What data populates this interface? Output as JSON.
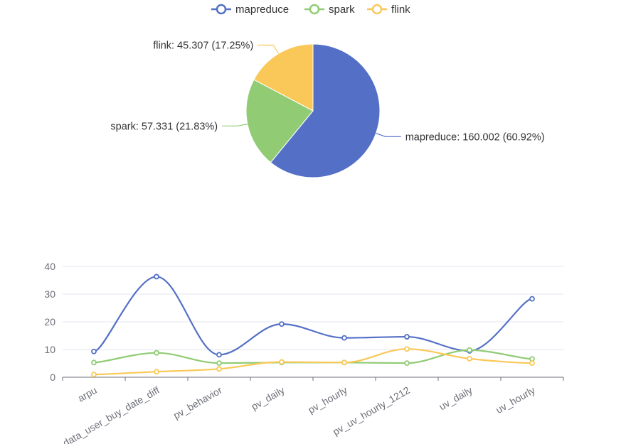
{
  "legend": [
    {
      "name": "mapreduce",
      "color": "#5470c6"
    },
    {
      "name": "spark",
      "color": "#91cc75"
    },
    {
      "name": "flink",
      "color": "#fac858"
    }
  ],
  "chart_data": [
    {
      "type": "pie",
      "slices": [
        {
          "name": "mapreduce",
          "value": 160.002,
          "percent": "60.92%",
          "label": "mapreduce: 160.002 (60.92%)",
          "color": "#5470c6"
        },
        {
          "name": "spark",
          "value": 57.331,
          "percent": "21.83%",
          "label": "spark: 57.331 (21.83%)",
          "color": "#91cc75"
        },
        {
          "name": "flink",
          "value": 45.307,
          "percent": "17.25%",
          "label": "flink: 45.307 (17.25%)",
          "color": "#fac858"
        }
      ]
    },
    {
      "type": "line",
      "smooth": true,
      "categories": [
        "arpu",
        "data_user_buy_date_diff",
        "pv_behavior",
        "pv_daily",
        "pv_hourly",
        "pv_uv_hourly_1212",
        "uv_daily",
        "uv_hourly"
      ],
      "series": [
        {
          "name": "mapreduce",
          "color": "#5470c6",
          "values": [
            9.3,
            36.3,
            8.1,
            19.2,
            14.2,
            14.6,
            9.5,
            28.3
          ]
        },
        {
          "name": "spark",
          "color": "#91cc75",
          "values": [
            5.3,
            8.8,
            5.1,
            5.3,
            5.3,
            5.1,
            9.8,
            6.6
          ]
        },
        {
          "name": "flink",
          "color": "#fac858",
          "values": [
            1.0,
            2.0,
            3.0,
            5.5,
            5.3,
            10.2,
            6.7,
            5.1
          ]
        }
      ],
      "yticks": [
        "0",
        "10",
        "20",
        "30",
        "40"
      ],
      "ylim": [
        0,
        40
      ],
      "grid": true,
      "xlabel_rotation_deg": -30
    }
  ]
}
